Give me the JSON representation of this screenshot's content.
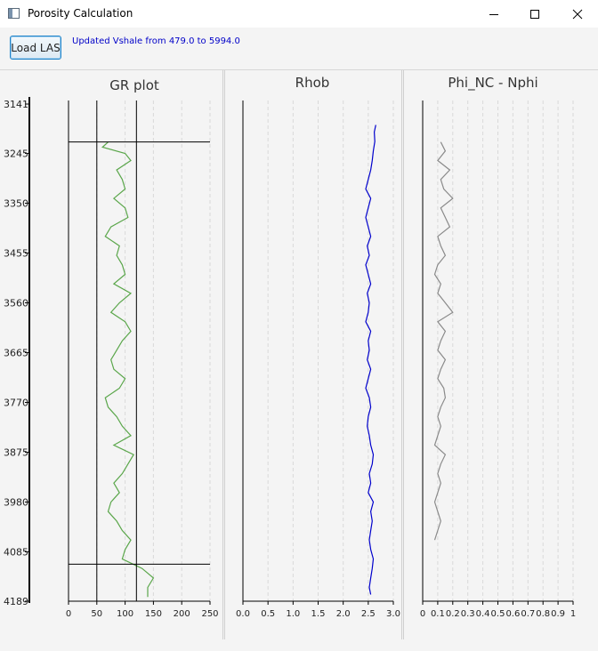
{
  "window": {
    "title": "Porosity Calculation"
  },
  "toolbar": {
    "load_label": "Load LAS",
    "status": "Updated Vshale from 479.0 to 5994.0"
  },
  "colors": {
    "gr": "#5aa64a",
    "rhob": "#0000cc",
    "phi": "#8a8a8a"
  },
  "icons": [
    "app-icon",
    "minimize-icon",
    "maximize-icon",
    "close-icon"
  ],
  "chart_data": [
    {
      "type": "line",
      "title": "GR plot",
      "ylim": [
        4189,
        3141
      ],
      "depth_ticks": [
        "3141",
        "3245",
        "3350",
        "3455",
        "3560",
        "3665",
        "3770",
        "3875",
        "3980",
        "4085",
        "4189"
      ],
      "xlim": [
        0,
        250
      ],
      "x_ticks": [
        "0",
        "50",
        "100",
        "150",
        "200",
        "250"
      ],
      "grid": true,
      "cutoff_lines": {
        "x": [
          50,
          120
        ],
        "depth": [
          3221,
          4111
        ]
      },
      "series": [
        {
          "depth": [
            3221,
            3232,
            3245,
            3260,
            3280,
            3300,
            3320,
            3340,
            3360,
            3380,
            3400,
            3420,
            3440,
            3460,
            3480,
            3500,
            3520,
            3540,
            3560,
            3580,
            3600,
            3620,
            3640,
            3660,
            3680,
            3700,
            3720,
            3740,
            3760,
            3780,
            3800,
            3820,
            3840,
            3860,
            3880,
            3900,
            3920,
            3940,
            3960,
            3980,
            4000,
            4020,
            4040,
            4060,
            4080,
            4100,
            4120,
            4140,
            4160,
            4180
          ],
          "values": [
            70,
            60,
            100,
            110,
            85,
            95,
            100,
            80,
            100,
            105,
            75,
            65,
            90,
            85,
            95,
            100,
            80,
            110,
            90,
            75,
            100,
            110,
            95,
            85,
            75,
            80,
            100,
            90,
            65,
            70,
            85,
            95,
            110,
            80,
            115,
            105,
            95,
            80,
            90,
            75,
            70,
            85,
            95,
            110,
            100,
            95,
            130,
            150,
            140,
            140
          ]
        }
      ]
    },
    {
      "type": "line",
      "title": "Rhob",
      "ylim": [
        4189,
        3141
      ],
      "xlim": [
        0.0,
        3.0
      ],
      "x_ticks": [
        "0.0",
        "0.5",
        "1.0",
        "1.5",
        "2.0",
        "2.5",
        "3.0"
      ],
      "grid": true,
      "series": [
        {
          "depth": [
            3185,
            3200,
            3220,
            3240,
            3260,
            3280,
            3300,
            3320,
            3340,
            3360,
            3380,
            3400,
            3420,
            3440,
            3460,
            3480,
            3500,
            3520,
            3540,
            3560,
            3580,
            3600,
            3620,
            3640,
            3660,
            3680,
            3700,
            3720,
            3740,
            3760,
            3780,
            3800,
            3820,
            3840,
            3860,
            3880,
            3900,
            3920,
            3940,
            3960,
            3980,
            4000,
            4020,
            4040,
            4060,
            4080,
            4100,
            4120,
            4140,
            4160,
            4175
          ],
          "values": [
            2.65,
            2.62,
            2.63,
            2.6,
            2.58,
            2.55,
            2.5,
            2.45,
            2.55,
            2.5,
            2.45,
            2.5,
            2.55,
            2.48,
            2.52,
            2.45,
            2.5,
            2.55,
            2.48,
            2.52,
            2.5,
            2.45,
            2.55,
            2.5,
            2.52,
            2.48,
            2.55,
            2.5,
            2.45,
            2.52,
            2.55,
            2.5,
            2.48,
            2.52,
            2.55,
            2.6,
            2.58,
            2.52,
            2.55,
            2.5,
            2.6,
            2.55,
            2.58,
            2.55,
            2.52,
            2.55,
            2.6,
            2.58,
            2.55,
            2.52,
            2.55
          ]
        }
      ]
    },
    {
      "type": "line",
      "title": "Phi_NC - Nphi",
      "ylim": [
        4189,
        3141
      ],
      "xlim": [
        0,
        1
      ],
      "x_ticks": [
        "0",
        "0.1",
        "0.2",
        "0.3",
        "0.4",
        "0.5",
        "0.6",
        "0.7",
        "0.8",
        "0.9",
        "1"
      ],
      "grid": true,
      "series": [
        {
          "depth": [
            3221,
            3240,
            3260,
            3280,
            3300,
            3320,
            3340,
            3360,
            3380,
            3400,
            3420,
            3440,
            3460,
            3480,
            3500,
            3520,
            3540,
            3560,
            3580,
            3600,
            3620,
            3640,
            3660,
            3680,
            3700,
            3720,
            3740,
            3760,
            3780,
            3800,
            3820,
            3840,
            3860,
            3880,
            3900,
            3920,
            3940,
            3960,
            3980,
            4000,
            4020,
            4040,
            4060
          ],
          "values": [
            0.12,
            0.15,
            0.1,
            0.18,
            0.12,
            0.14,
            0.2,
            0.12,
            0.15,
            0.18,
            0.1,
            0.12,
            0.15,
            0.1,
            0.08,
            0.12,
            0.1,
            0.15,
            0.2,
            0.1,
            0.15,
            0.12,
            0.1,
            0.15,
            0.12,
            0.1,
            0.14,
            0.15,
            0.12,
            0.1,
            0.12,
            0.1,
            0.08,
            0.15,
            0.12,
            0.1,
            0.12,
            0.1,
            0.08,
            0.1,
            0.12,
            0.1,
            0.08
          ]
        }
      ]
    }
  ]
}
